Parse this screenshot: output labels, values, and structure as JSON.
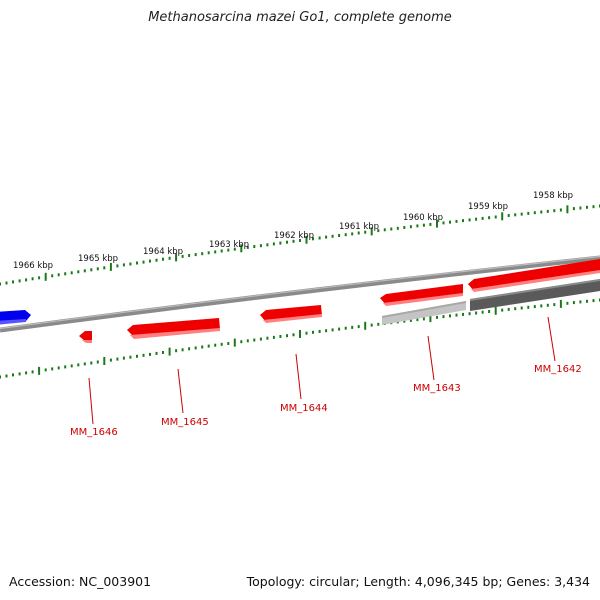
{
  "title": "Methanosarcina mazei Go1, complete genome",
  "footer": {
    "accession": "Accession: NC_003901",
    "stats": "Topology: circular; Length: 4,096,345 bp; Genes: 3,434"
  },
  "ruler_labels": [
    "1966 kbp",
    "1965 kbp",
    "1964 kbp",
    "1963 kbp",
    "1962 kbp",
    "1961 kbp",
    "1960 kbp",
    "1959 kbp",
    "1958 kbp"
  ],
  "gene_labels": [
    "MM_1646",
    "MM_1645",
    "MM_1644",
    "MM_1643",
    "MM_1642"
  ],
  "colors": {
    "forward_gene": "#ee0000",
    "reverse_gene": "#0000ee",
    "backbone": "#777777",
    "ticks": "#1a7a1a",
    "label": "#cc0000"
  }
}
